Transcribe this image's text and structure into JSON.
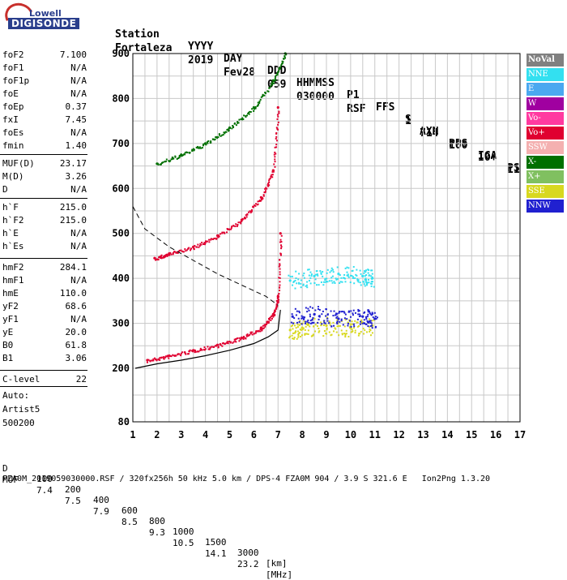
{
  "logo": {
    "brand": "Lowell",
    "name": "DIGISONDE"
  },
  "header": {
    "line1": [
      "Station",
      "YYYY",
      "DAY",
      "DDD",
      "HHMMSS",
      "P1",
      "FFS",
      "S",
      "AXN",
      "PPS",
      "IGA",
      "PS"
    ],
    "line2": [
      "Fortaleza",
      "2019",
      "Fev28",
      "059",
      "030000",
      "RSF",
      "1",
      "714",
      "100",
      "10+",
      "11"
    ]
  },
  "parameters": [
    {
      "name": "foF2",
      "value": "7.100"
    },
    {
      "name": "foF1",
      "value": "N/A"
    },
    {
      "name": "foF1p",
      "value": "N/A"
    },
    {
      "name": "foE",
      "value": "N/A"
    },
    {
      "name": "foEp",
      "value": "0.37"
    },
    {
      "name": "fxI",
      "value": "7.45"
    },
    {
      "name": "foEs",
      "value": "N/A"
    },
    {
      "name": "fmin",
      "value": "1.40"
    },
    {
      "name": "MUF(D)",
      "value": "23.17"
    },
    {
      "name": "M(D)",
      "value": "3.26"
    },
    {
      "name": "D",
      "value": "N/A"
    },
    {
      "name": "h`F",
      "value": "215.0"
    },
    {
      "name": "h`F2",
      "value": "215.0"
    },
    {
      "name": "h`E",
      "value": "N/A"
    },
    {
      "name": "h`Es",
      "value": "N/A"
    },
    {
      "name": "hmF2",
      "value": "284.1"
    },
    {
      "name": "hmF1",
      "value": "N/A"
    },
    {
      "name": "hmE",
      "value": "110.0"
    },
    {
      "name": "yF2",
      "value": "68.6"
    },
    {
      "name": "yF1",
      "value": "N/A"
    },
    {
      "name": "yE",
      "value": "20.0"
    },
    {
      "name": "B0",
      "value": "61.8"
    },
    {
      "name": "B1",
      "value": "3.06"
    },
    {
      "name": "C-level",
      "value": "22"
    }
  ],
  "autoscaling": {
    "label": "Auto:",
    "program": "Artist5",
    "version": "500200"
  },
  "legend": [
    {
      "label": "NoVal",
      "color": "#808080"
    },
    {
      "label": "NNE",
      "color": "#33e0f0"
    },
    {
      "label": "E",
      "color": "#4aa8f0"
    },
    {
      "label": "W",
      "color": "#a000a0"
    },
    {
      "label": "Vo-",
      "color": "#ff3aa0"
    },
    {
      "label": "Vo+",
      "color": "#e00030"
    },
    {
      "label": "SSW",
      "color": "#f4b0b0"
    },
    {
      "label": "X-",
      "color": "#007000"
    },
    {
      "label": "X+",
      "color": "#80c060"
    },
    {
      "label": "SSE",
      "color": "#d8d820"
    },
    {
      "label": "NNW",
      "color": "#2020d0"
    }
  ],
  "muf_table": {
    "d_label": "D",
    "d_values": [
      "100",
      "200",
      "400",
      "600",
      "800",
      "1000",
      "1500",
      "3000"
    ],
    "d_unit": "[km]",
    "muf_label": "MUF",
    "muf_values": [
      "7.4",
      "7.5",
      "7.9",
      "8.5",
      "9.3",
      "10.5",
      "14.1",
      "23.2"
    ],
    "muf_unit": "[MHz]"
  },
  "footer": "FZA0M_2019059030000.RSF / 320fx256h 50 kHz 5.0 km / DPS-4 FZA0M 904 / 3.9 S 321.6 E   Ion2Png 1.3.20",
  "chart_data": {
    "type": "scatter",
    "x_ticks": [
      "1",
      "2",
      "3",
      "4",
      "5",
      "6",
      "7",
      "8",
      "9",
      "10",
      "11",
      "12",
      "13",
      "14",
      "15",
      "16",
      "17"
    ],
    "y_ticks": [
      "80",
      "200",
      "300",
      "400",
      "500",
      "600",
      "700",
      "800",
      "900"
    ],
    "xlim": [
      1,
      17
    ],
    "ylim": [
      80,
      900
    ],
    "grid": true,
    "series": [
      {
        "name": "Vo+",
        "trace": "F2 ordinary",
        "x": [
          1.6,
          2.5,
          3.5,
          4.5,
          5.5,
          6.3,
          6.8,
          7.0,
          7.1
        ],
        "y": [
          218,
          228,
          240,
          252,
          268,
          290,
          320,
          360,
          500
        ]
      },
      {
        "name": "Vo+",
        "trace": "2F2 ordinary",
        "x": [
          1.9,
          2.5,
          3.5,
          4.5,
          5.5,
          6.3,
          6.8,
          7.0
        ],
        "y": [
          445,
          455,
          470,
          495,
          530,
          580,
          640,
          780
        ]
      },
      {
        "name": "X-",
        "trace": "3F2",
        "x": [
          2.0,
          3.0,
          4.0,
          5.0,
          6.0,
          6.8,
          7.3
        ],
        "y": [
          655,
          675,
          700,
          735,
          780,
          840,
          900
        ]
      },
      {
        "name": "SSE",
        "trace": "spread F",
        "x": [
          7.5,
          8.0,
          9.0,
          10.0,
          10.9
        ],
        "y": [
          285,
          290,
          295,
          290,
          295
        ]
      },
      {
        "name": "NNE",
        "trace": "spread F",
        "x": [
          7.5,
          8.5,
          9.5,
          10.5,
          10.9
        ],
        "y": [
          395,
          405,
          410,
          405,
          400
        ]
      },
      {
        "name": "NNW",
        "trace": "spread F",
        "x": [
          7.6,
          8.5,
          9.5,
          10.5,
          11.0
        ],
        "y": [
          315,
          320,
          310,
          315,
          310
        ]
      }
    ],
    "profile_x": [
      1.1,
      2.0,
      3.0,
      4.0,
      5.0,
      6.0,
      6.6,
      7.0,
      7.1
    ],
    "profile_y": [
      200,
      210,
      218,
      228,
      240,
      255,
      270,
      285,
      330
    ],
    "profile_dashed_x": [
      1.0,
      1.5,
      2.5,
      3.5,
      4.5,
      5.5,
      6.5,
      7.0
    ],
    "profile_dashed_y": [
      560,
      510,
      470,
      440,
      410,
      385,
      360,
      340
    ]
  }
}
